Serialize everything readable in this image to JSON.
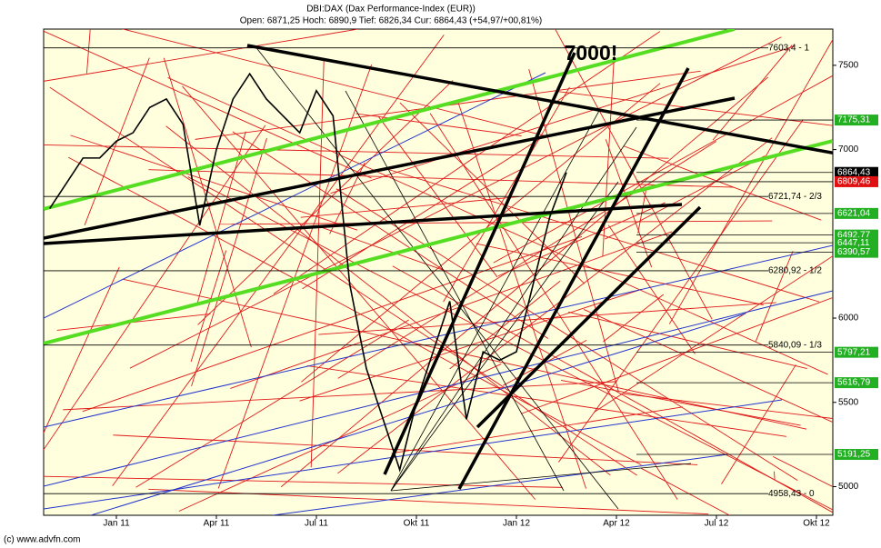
{
  "chart_data": {
    "type": "line",
    "title": "DBI:DAX (Dax Performance-Index (EUR))",
    "subtitle": "Open: 6871,25 Hoch: 6890,9 Tief: 6826,34 Cur: 6864,43 (+54,97/+00,81%)",
    "annotation": "7000!",
    "footer": "(c) www.advfn.com",
    "categories": [
      null,
      null,
      null,
      null,
      "Jan 11",
      null,
      null,
      null,
      null,
      null,
      "Apr 11",
      null,
      null,
      null,
      null,
      null,
      "Jul 11",
      null,
      null,
      null,
      null,
      null,
      "Okt 11",
      null,
      null,
      null,
      null,
      null,
      "Jan 12",
      null,
      null,
      null,
      null,
      null,
      "Apr 12",
      null,
      null,
      null,
      null,
      null,
      "Jul 12",
      null,
      null,
      null,
      null,
      null,
      "Okt 12",
      null
    ],
    "values": [
      6650,
      6800,
      6950,
      6950,
      7050,
      7100,
      7250,
      7300,
      7150,
      6550,
      7000,
      7300,
      7450,
      7300,
      7200,
      7100,
      7350,
      7200,
      6200,
      5700,
      5400,
      5100,
      5500,
      5800,
      6100,
      5400,
      5800,
      5750,
      5800,
      6200,
      6600,
      6864.43,
      null,
      null,
      null,
      null,
      null,
      null,
      null,
      null,
      null,
      null,
      null,
      null,
      null,
      null,
      null,
      null
    ],
    "color": "#000000",
    "ylim": [
      4830,
      7715
    ],
    "yticks": [
      5000,
      5500,
      6000,
      7000,
      7500
    ],
    "levels": [
      {
        "value": 7603.4,
        "label": "7603,4 - 1"
      },
      {
        "value": 6721.74,
        "label": "6721,74 - 2/3"
      },
      {
        "value": 6280.92,
        "label": "6280,92 - 1/2"
      },
      {
        "value": 5840.09,
        "label": "5840,09 - 1/3"
      },
      {
        "value": 4958.43,
        "label": "4958,43 - 0"
      }
    ],
    "price_tags": [
      {
        "value": 7175.31,
        "label": "7175,31",
        "color": "#22b022"
      },
      {
        "value": 6864.43,
        "label": "6864,43",
        "color": "#000000"
      },
      {
        "value": 6809.46,
        "label": "6809,46",
        "color": "#e01010"
      },
      {
        "value": 6621.04,
        "label": "6621,04",
        "color": "#22b022"
      },
      {
        "value": 6492.77,
        "label": "6492,77",
        "color": "#22b022"
      },
      {
        "value": 6447.11,
        "label": "6447,11",
        "color": "#22b022"
      },
      {
        "value": 6390.57,
        "label": "6390,57",
        "color": "#22b022"
      },
      {
        "value": 5797.21,
        "label": "5797,21",
        "color": "#22b022"
      },
      {
        "value": 5616.79,
        "label": "5616,79",
        "color": "#22b022"
      },
      {
        "value": 5191.25,
        "label": "5191,25",
        "color": "#22b022"
      }
    ]
  }
}
